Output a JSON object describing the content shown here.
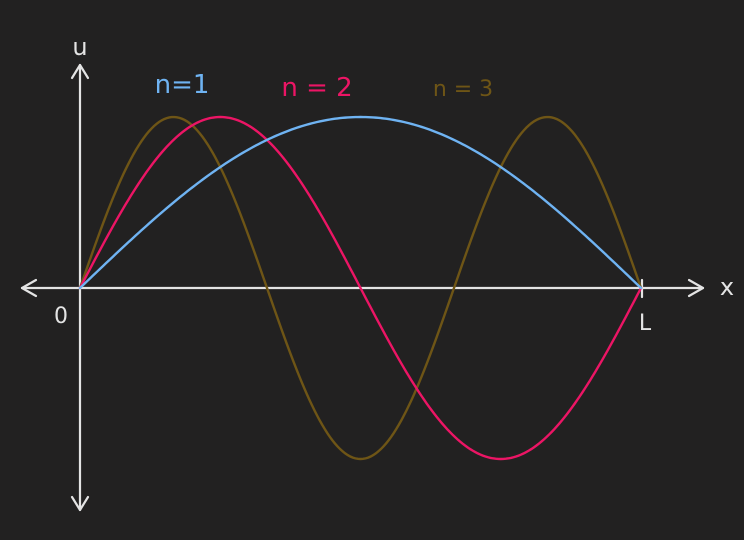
{
  "colors": {
    "background": "#222121",
    "axis": "#e4e4e4",
    "n1": "#6fb3f2",
    "n2": "#ec1565",
    "n3": "#6e5516"
  },
  "axes": {
    "vertical_label": "u",
    "horizontal_label": "x",
    "origin_label": "0",
    "end_label": "L"
  },
  "modes": [
    {
      "label": "n=1",
      "n": 1,
      "color_key": "n1"
    },
    {
      "label": "n = 2",
      "n": 2,
      "color_key": "n2"
    },
    {
      "label": "n = 3",
      "n": 3,
      "color_key": "n3"
    }
  ]
}
